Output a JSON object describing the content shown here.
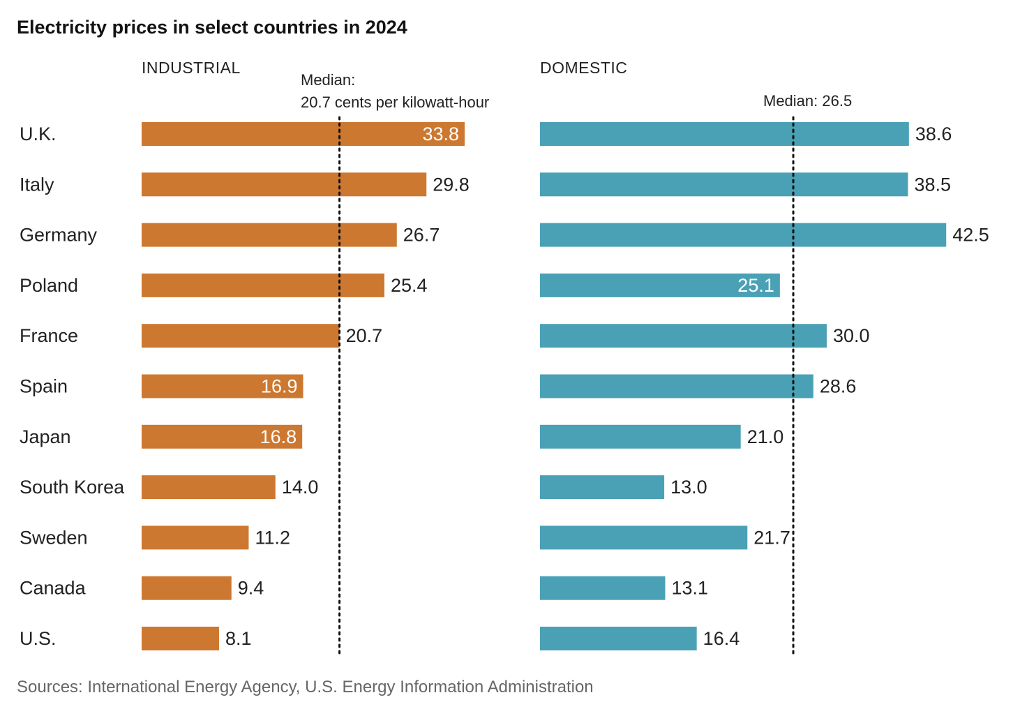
{
  "title": "Electricity prices in select countries in 2024",
  "source": "Sources: International Energy Agency, U.S. Energy Information Administration",
  "chart_data": [
    {
      "type": "bar",
      "orientation": "horizontal",
      "panel_label": "INDUSTRIAL",
      "color": "#CD7830",
      "categories": [
        "U.K.",
        "Italy",
        "Germany",
        "Poland",
        "France",
        "Spain",
        "Japan",
        "South Korea",
        "Sweden",
        "Canada",
        "U.S."
      ],
      "values": [
        33.8,
        29.8,
        26.7,
        25.4,
        20.7,
        16.9,
        16.8,
        14.0,
        11.2,
        9.4,
        8.1
      ],
      "labels": [
        "33.8",
        "29.8",
        "26.7",
        "25.4",
        "20.7",
        "16.9",
        "16.8",
        "14.0",
        "11.2",
        "9.4",
        "8.1"
      ],
      "labels_inside": [
        true,
        false,
        false,
        false,
        false,
        true,
        true,
        false,
        false,
        false,
        false
      ],
      "median": 20.7,
      "median_label_line1": "Median:",
      "median_label_line2": "20.7 cents per kilowatt-hour",
      "unit": "cents per kilowatt-hour",
      "xlim": [
        0,
        34
      ],
      "grid": false
    },
    {
      "type": "bar",
      "orientation": "horizontal",
      "panel_label": "DOMESTIC",
      "color": "#4AA1B6",
      "categories": [
        "U.K.",
        "Italy",
        "Germany",
        "Poland",
        "France",
        "Spain",
        "Japan",
        "South Korea",
        "Sweden",
        "Canada",
        "U.S."
      ],
      "values": [
        38.6,
        38.5,
        42.5,
        25.1,
        30.0,
        28.6,
        21.0,
        13.0,
        21.7,
        13.1,
        16.4
      ],
      "labels": [
        "38.6",
        "38.5",
        "42.5",
        "25.1",
        "30.0",
        "28.6",
        "21.0",
        "13.0",
        "21.7",
        "13.1",
        "16.4"
      ],
      "labels_inside": [
        false,
        false,
        false,
        true,
        false,
        false,
        false,
        false,
        false,
        false,
        false
      ],
      "median": 26.5,
      "median_label_line1": "Median: 26.5",
      "median_label_line2": "",
      "unit": "cents per kilowatt-hour",
      "xlim": [
        0,
        42.5
      ],
      "grid": false
    }
  ]
}
